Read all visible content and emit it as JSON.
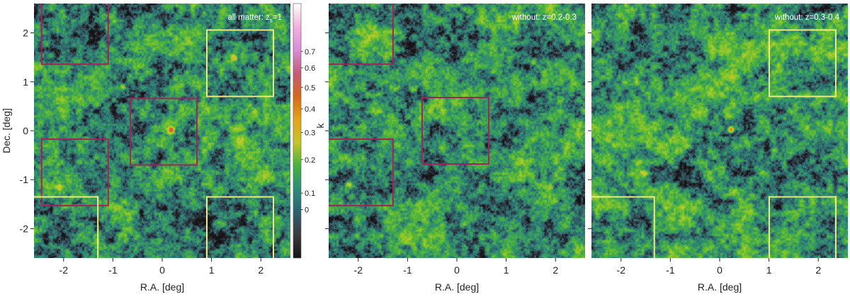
{
  "chart_data": [
    {
      "type": "heatmap",
      "panel_label_prefix": "all matter: z",
      "panel_label_sub": "s",
      "panel_label_suffix": "=1",
      "xlabel": "R.A. [deg]",
      "ylabel": "Dec. [deg]",
      "xlim": [
        -2.6,
        2.6
      ],
      "ylim": [
        -2.6,
        2.6
      ],
      "xticks": [
        "-2",
        "-1",
        "0",
        "1",
        "2"
      ],
      "xtick_values": [
        -2,
        -1,
        0,
        1,
        2
      ],
      "yticks": [
        "2",
        "1",
        "0",
        "-1",
        "-2"
      ],
      "ytick_values": [
        2,
        1,
        0,
        -1,
        -2
      ],
      "boxes": [
        {
          "color": "#a0245a",
          "center": [
            -1.77,
            2.04
          ]
        },
        {
          "color": "#a0245a",
          "center": [
            0.03,
            -0.02
          ]
        },
        {
          "color": "#a0245a",
          "center": [
            -1.77,
            -0.85
          ]
        },
        {
          "color": "#ecec80",
          "center": [
            1.58,
            1.38
          ]
        },
        {
          "color": "#ecec80",
          "center": [
            -1.98,
            -2.03
          ]
        },
        {
          "color": "#ecec80",
          "center": [
            1.58,
            -2.03
          ]
        }
      ],
      "box_size_deg": 1.0,
      "peaks": [
        [
          0.17,
          0.03,
          0.36
        ],
        [
          1.45,
          1.5,
          0.18
        ],
        [
          -2.1,
          -1.15,
          0.15
        ],
        [
          -0.8,
          0.9,
          0.12
        ]
      ]
    },
    {
      "type": "heatmap",
      "panel_label": "without: z=0.2-0.3",
      "xlabel": "R.A. [deg]",
      "xlim": [
        -2.6,
        2.6
      ],
      "ylim": [
        -2.6,
        2.6
      ],
      "xticks": [
        "-2",
        "-1",
        "0",
        "1",
        "2"
      ],
      "xtick_values": [
        -2,
        -1,
        0,
        1,
        2
      ],
      "boxes": [
        {
          "color": "#a0245a",
          "center": [
            -1.97,
            2.04
          ]
        },
        {
          "color": "#a0245a",
          "center": [
            -0.03,
            0.0
          ]
        },
        {
          "color": "#a0245a",
          "center": [
            -1.97,
            -0.85
          ]
        }
      ],
      "box_size_deg": 1.0,
      "peaks": [
        [
          -2.2,
          -1.1,
          0.14
        ],
        [
          1.55,
          1.38,
          0.1
        ],
        [
          -0.9,
          0.85,
          0.1
        ]
      ]
    },
    {
      "type": "heatmap",
      "panel_label": "without: z=0.3-0.4",
      "xlabel": "R.A. [deg]",
      "xlim": [
        -2.6,
        2.6
      ],
      "ylim": [
        -2.6,
        2.6
      ],
      "xticks": [
        "-2",
        "-1",
        "0",
        "1",
        "2"
      ],
      "xtick_values": [
        -2,
        -1,
        0,
        1,
        2
      ],
      "boxes": [
        {
          "color": "#ecec80",
          "center": [
            1.68,
            1.38
          ]
        },
        {
          "color": "#ecec80",
          "center": [
            -2.0,
            -2.03
          ]
        },
        {
          "color": "#ecec80",
          "center": [
            1.68,
            -2.03
          ]
        }
      ],
      "box_size_deg": 1.0,
      "peaks": [
        [
          0.22,
          0.03,
          0.34
        ],
        [
          -1.55,
          -0.85,
          0.12
        ],
        [
          1.1,
          -0.4,
          0.1
        ]
      ]
    }
  ],
  "colorbar": {
    "label": "k",
    "tick_labels": [
      "0.7",
      "0.6",
      "0.5",
      "0.4",
      "0.3",
      "0.2",
      "0.1",
      "0"
    ],
    "tick_values": [
      0.7,
      0.6,
      0.5,
      0.4,
      0.3,
      0.2,
      0.1,
      0.0
    ],
    "colors": [
      "#ffffff",
      "#f3b1dd",
      "#d98ed8",
      "#c25c7a",
      "#d4671b",
      "#e6a319",
      "#c4c42a",
      "#45b33c",
      "#2e8c7a",
      "#2d6272",
      "#3a3a40",
      "#141414"
    ]
  }
}
